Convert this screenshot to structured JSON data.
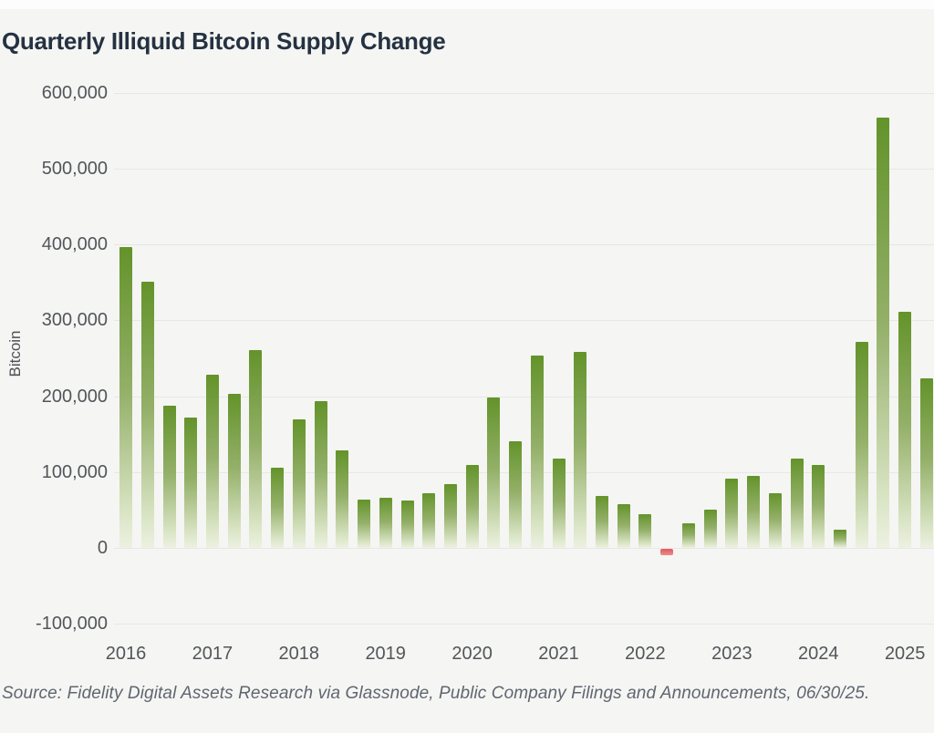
{
  "title": "Quarterly Illiquid Bitcoin Supply Change",
  "source": "Source: Fidelity Digital Assets Research via Glassnode, Public Company Filings and Announcements, 06/30/25.",
  "colors": {
    "bar_green_top": "#63932a",
    "bar_green_bottom": "#ecf1e1",
    "bar_negative_red": "#e05a5e",
    "title_text": "#253241",
    "axis_text": "#52565a",
    "gridline": "#e7e7e5",
    "background": "#f5f5f3"
  },
  "chart_data": {
    "type": "bar",
    "title": "Quarterly Illiquid Bitcoin Supply Change",
    "xlabel": "",
    "ylabel": "Bitcoin",
    "ylim": [
      -100000,
      600000
    ],
    "ytick_interval": 100000,
    "grid": "horizontal",
    "legend": "none",
    "yticks": [
      {
        "value": 600000,
        "label": "600,000"
      },
      {
        "value": 500000,
        "label": "500,000"
      },
      {
        "value": 400000,
        "label": "400,000"
      },
      {
        "value": 300000,
        "label": "300,000"
      },
      {
        "value": 200000,
        "label": "200,000"
      },
      {
        "value": 100000,
        "label": "100,000"
      },
      {
        "value": 0,
        "label": "0"
      },
      {
        "value": -100000,
        "label": "-100,000"
      }
    ],
    "xticks": [
      "2016",
      "2017",
      "2018",
      "2019",
      "2020",
      "2021",
      "2022",
      "2023",
      "2024",
      "2025"
    ],
    "categories": [
      "2016 Q1",
      "2016 Q2",
      "2016 Q3",
      "2016 Q4",
      "2017 Q1",
      "2017 Q2",
      "2017 Q3",
      "2017 Q4",
      "2018 Q1",
      "2018 Q2",
      "2018 Q3",
      "2018 Q4",
      "2019 Q1",
      "2019 Q2",
      "2019 Q3",
      "2019 Q4",
      "2020 Q1",
      "2020 Q2",
      "2020 Q3",
      "2020 Q4",
      "2021 Q1",
      "2021 Q2",
      "2021 Q3",
      "2021 Q4",
      "2022 Q1",
      "2022 Q2",
      "2022 Q3",
      "2022 Q4",
      "2023 Q1",
      "2023 Q2",
      "2023 Q3",
      "2023 Q4",
      "2024 Q1",
      "2024 Q2",
      "2024 Q3",
      "2024 Q4",
      "2025 Q1",
      "2025 Q2"
    ],
    "values": [
      397000,
      351000,
      188000,
      172000,
      228000,
      203000,
      261000,
      106000,
      169000,
      193000,
      129000,
      64000,
      66000,
      63000,
      72000,
      84000,
      109000,
      198000,
      141000,
      254000,
      118000,
      258000,
      69000,
      58000,
      45000,
      -8000,
      33000,
      51000,
      92000,
      95000,
      72000,
      118000,
      109000,
      24000,
      272000,
      567000,
      311000,
      224000
    ]
  }
}
